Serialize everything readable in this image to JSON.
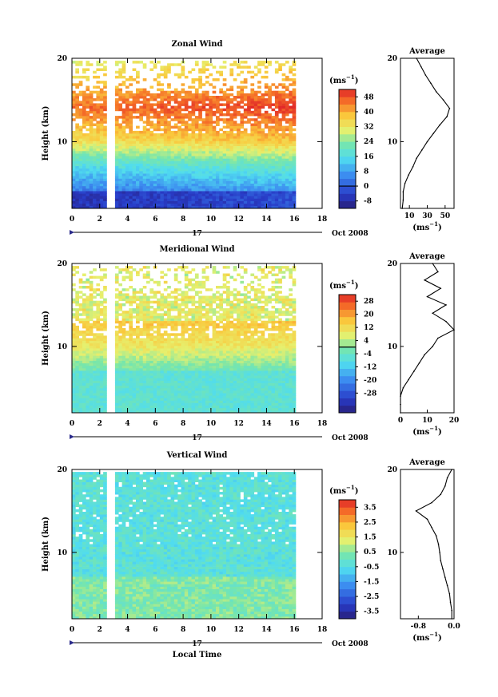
{
  "chart_data": [
    {
      "type": "heatmap",
      "title": "Zonal Wind",
      "ylabel": "Height (km)",
      "xlim": [
        0,
        18
      ],
      "ylim": [
        2,
        20
      ],
      "x_ticks": [
        "0",
        "2",
        "4",
        "6",
        "8",
        "10",
        "12",
        "14",
        "16",
        "18"
      ],
      "y_ticks": [
        "10",
        "20"
      ],
      "data_coverage_hours": [
        [
          0,
          2.5
        ],
        [
          3.1,
          16
        ]
      ],
      "date_label": "Oct 2008",
      "day_label": "17",
      "colorbar": {
        "unit_base": "(ms",
        "unit_exp": "−1",
        "unit_close": ")",
        "range": [
          -12,
          52
        ],
        "ticks": [
          "-8",
          "0",
          "8",
          "16",
          "24",
          "32",
          "40",
          "48"
        ],
        "contour_level": "0"
      },
      "profile": {
        "title": "Average",
        "xlabel_base": "(ms",
        "xlabel_exp": "−1",
        "xlabel_close": ")",
        "xlim": [
          0,
          60
        ],
        "x_ticks": [
          "10",
          "30",
          "50"
        ],
        "height_km": [
          2,
          3,
          4,
          5,
          6,
          7,
          8,
          9,
          10,
          11,
          12,
          13,
          14,
          15,
          16,
          17,
          18,
          19,
          20
        ],
        "values": [
          2,
          3,
          3,
          5,
          9,
          14,
          18,
          24,
          30,
          37,
          44,
          52,
          55,
          48,
          40,
          34,
          28,
          23,
          18
        ]
      }
    },
    {
      "type": "heatmap",
      "title": "Meridional Wind",
      "ylabel": "Height (km)",
      "xlim": [
        0,
        18
      ],
      "ylim": [
        2,
        20
      ],
      "x_ticks": [
        "0",
        "2",
        "4",
        "6",
        "8",
        "10",
        "12",
        "14",
        "16",
        "18"
      ],
      "y_ticks": [
        "10",
        "20"
      ],
      "data_coverage_hours": [
        [
          0,
          2.5
        ],
        [
          3.1,
          16
        ]
      ],
      "date_label": "Oct 2008",
      "day_label": "17",
      "colorbar": {
        "unit_base": "(ms",
        "unit_exp": "−1",
        "unit_close": ")",
        "range": [
          -40,
          32
        ],
        "ticks": [
          "-28",
          "-20",
          "-12",
          "-4",
          "4",
          "12",
          "20",
          "28"
        ],
        "contour_level": "0"
      },
      "profile": {
        "title": "Average",
        "xlabel_base": "(ms",
        "xlabel_exp": "−1",
        "xlabel_close": ")",
        "xlim": [
          0,
          20
        ],
        "x_ticks": [
          "0",
          "10",
          "20"
        ],
        "height_km": [
          2,
          3,
          4,
          5,
          6,
          7,
          8,
          9,
          10,
          11,
          12,
          13,
          14,
          15,
          16,
          17,
          18,
          19,
          20
        ],
        "values": [
          0,
          0,
          0,
          1,
          3,
          5,
          7,
          9,
          12,
          14,
          20,
          17,
          12,
          17,
          10,
          15,
          9,
          14,
          12
        ]
      }
    },
    {
      "type": "heatmap",
      "title": "Vertical Wind",
      "ylabel": "Height (km)",
      "xlabel": "Local Time",
      "xlim": [
        0,
        18
      ],
      "ylim": [
        2,
        20
      ],
      "x_ticks": [
        "0",
        "2",
        "4",
        "6",
        "8",
        "10",
        "12",
        "14",
        "16",
        "18"
      ],
      "y_ticks": [
        "10",
        "20"
      ],
      "data_coverage_hours": [
        [
          0,
          2.5
        ],
        [
          3.1,
          16
        ]
      ],
      "date_label": "Oct 2008",
      "day_label": "17",
      "colorbar": {
        "unit_base": "(ms",
        "unit_exp": "−1",
        "unit_close": ")",
        "range": [
          -4.0,
          4.0
        ],
        "ticks": [
          "-3.5",
          "-2.5",
          "-1.5",
          "-0.5",
          "0.5",
          "1.5",
          "2.5",
          "3.5"
        ]
      },
      "profile": {
        "title": "Average",
        "xlabel_base": "(ms",
        "xlabel_exp": "−1",
        "xlabel_close": ")",
        "xlim": [
          -1.2,
          0
        ],
        "x_ticks": [
          "-0.8",
          "0.0"
        ],
        "height_km": [
          2,
          3,
          4,
          5,
          6,
          7,
          8,
          9,
          10,
          11,
          12,
          13,
          14,
          15,
          16,
          17,
          18,
          19,
          20
        ],
        "values": [
          -0.05,
          -0.05,
          -0.08,
          -0.1,
          -0.15,
          -0.2,
          -0.25,
          -0.3,
          -0.32,
          -0.35,
          -0.4,
          -0.5,
          -0.6,
          -0.85,
          -0.5,
          -0.3,
          -0.2,
          -0.15,
          -0.05
        ]
      }
    }
  ]
}
